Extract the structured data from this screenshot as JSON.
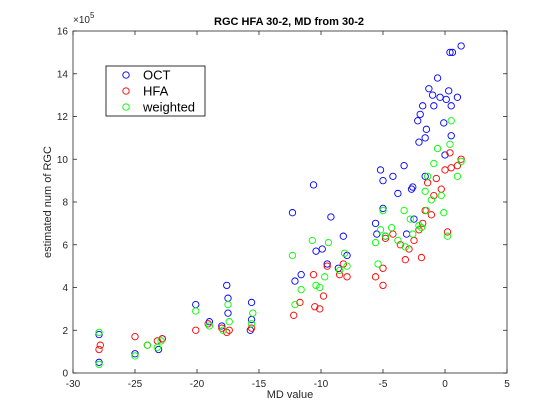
{
  "chart_data": {
    "type": "scatter",
    "title": "RGC HFA 30-2, MD from 30-2",
    "xlabel": "MD value",
    "ylabel": "estimated num of RGC",
    "y_exponent_label": "×10",
    "y_exponent_power": "5",
    "xlim": [
      -30,
      5
    ],
    "ylim": [
      0,
      16
    ],
    "x_ticks": [
      -30,
      -25,
      -20,
      -15,
      -10,
      -5,
      0,
      5
    ],
    "y_ticks": [
      0,
      2,
      4,
      6,
      8,
      10,
      12,
      14,
      16
    ],
    "x_tick_labels": [
      "-30",
      "-25",
      "-20",
      "-15",
      "-10",
      "-5",
      "0",
      "5"
    ],
    "y_tick_labels": [
      "0",
      "2",
      "4",
      "6",
      "8",
      "10",
      "12",
      "14",
      "16"
    ],
    "grid": false,
    "legend_position": "top-left",
    "marker": "open-circle",
    "series": [
      {
        "name": "OCT",
        "color": "#0000ff",
        "points": [
          [
            -27.9,
            0.5
          ],
          [
            -27.9,
            1.8
          ],
          [
            -25.0,
            0.9
          ],
          [
            -23.1,
            1.1
          ],
          [
            -22.8,
            1.6
          ],
          [
            -20.1,
            3.2
          ],
          [
            -19.0,
            2.4
          ],
          [
            -18.0,
            2.2
          ],
          [
            -17.6,
            4.1
          ],
          [
            -17.5,
            3.5
          ],
          [
            -17.5,
            2.8
          ],
          [
            -15.7,
            2.0
          ],
          [
            -15.6,
            2.5
          ],
          [
            -15.6,
            3.3
          ],
          [
            -12.3,
            7.5
          ],
          [
            -12.1,
            4.3
          ],
          [
            -11.6,
            4.6
          ],
          [
            -10.6,
            8.8
          ],
          [
            -10.4,
            5.7
          ],
          [
            -9.9,
            5.8
          ],
          [
            -9.5,
            5.1
          ],
          [
            -9.2,
            7.3
          ],
          [
            -8.6,
            4.9
          ],
          [
            -8.2,
            6.4
          ],
          [
            -7.9,
            5.5
          ],
          [
            -5.6,
            7.0
          ],
          [
            -5.5,
            6.5
          ],
          [
            -5.2,
            9.5
          ],
          [
            -5.0,
            9.0
          ],
          [
            -5.0,
            7.7
          ],
          [
            -4.8,
            6.4
          ],
          [
            -4.2,
            9.2
          ],
          [
            -3.8,
            8.4
          ],
          [
            -3.3,
            9.7
          ],
          [
            -3.1,
            6.5
          ],
          [
            -2.7,
            8.6
          ],
          [
            -2.6,
            8.7
          ],
          [
            -2.5,
            7.2
          ],
          [
            -2.2,
            11.8
          ],
          [
            -2.1,
            10.8
          ],
          [
            -2.0,
            12.1
          ],
          [
            -1.8,
            12.5
          ],
          [
            -1.6,
            11.0
          ],
          [
            -1.6,
            9.2
          ],
          [
            -1.5,
            11.4
          ],
          [
            -1.3,
            13.3
          ],
          [
            -1.0,
            13.0
          ],
          [
            -0.9,
            12.5
          ],
          [
            -0.6,
            13.8
          ],
          [
            -0.4,
            12.9
          ],
          [
            -0.1,
            11.7
          ],
          [
            0.0,
            10.2
          ],
          [
            0.1,
            12.8
          ],
          [
            0.3,
            13.2
          ],
          [
            0.4,
            15.0
          ],
          [
            0.5,
            12.5
          ],
          [
            0.5,
            11.1
          ],
          [
            0.6,
            15.0
          ],
          [
            1.0,
            12.9
          ],
          [
            1.3,
            15.3
          ]
        ]
      },
      {
        "name": "HFA",
        "color": "#ff0000",
        "points": [
          [
            -27.9,
            1.1
          ],
          [
            -27.8,
            1.3
          ],
          [
            -25.0,
            1.7
          ],
          [
            -24.0,
            1.3
          ],
          [
            -23.2,
            1.5
          ],
          [
            -22.8,
            1.6
          ],
          [
            -20.1,
            2.0
          ],
          [
            -19.1,
            2.3
          ],
          [
            -18.0,
            2.1
          ],
          [
            -17.6,
            1.9
          ],
          [
            -17.4,
            2.0
          ],
          [
            -15.6,
            2.1
          ],
          [
            -12.2,
            2.7
          ],
          [
            -11.7,
            3.3
          ],
          [
            -10.6,
            4.6
          ],
          [
            -10.5,
            3.1
          ],
          [
            -10.1,
            3.0
          ],
          [
            -9.8,
            3.6
          ],
          [
            -9.5,
            5.0
          ],
          [
            -8.5,
            4.6
          ],
          [
            -8.2,
            5.1
          ],
          [
            -7.9,
            4.5
          ],
          [
            -5.6,
            4.5
          ],
          [
            -5.0,
            4.1
          ],
          [
            -5.0,
            4.9
          ],
          [
            -4.8,
            6.3
          ],
          [
            -4.2,
            6.5
          ],
          [
            -3.6,
            6.0
          ],
          [
            -3.2,
            5.3
          ],
          [
            -2.9,
            5.8
          ],
          [
            -2.5,
            6.2
          ],
          [
            -2.1,
            6.7
          ],
          [
            -1.9,
            5.4
          ],
          [
            -1.8,
            7.0
          ],
          [
            -1.6,
            7.6
          ],
          [
            -1.4,
            8.9
          ],
          [
            -1.1,
            7.4
          ],
          [
            -0.9,
            8.3
          ],
          [
            -0.7,
            9.1
          ],
          [
            -0.3,
            8.6
          ],
          [
            0.0,
            9.5
          ],
          [
            0.2,
            6.6
          ],
          [
            0.4,
            10.3
          ],
          [
            0.5,
            9.6
          ],
          [
            1.0,
            9.7
          ],
          [
            1.3,
            10.0
          ]
        ]
      },
      {
        "name": "weighted",
        "color": "#00ff00",
        "points": [
          [
            -27.9,
            0.4
          ],
          [
            -27.9,
            1.9
          ],
          [
            -25.0,
            0.8
          ],
          [
            -24.0,
            1.3
          ],
          [
            -23.2,
            1.2
          ],
          [
            -22.9,
            1.5
          ],
          [
            -20.1,
            2.9
          ],
          [
            -19.0,
            2.2
          ],
          [
            -17.9,
            2.0
          ],
          [
            -17.5,
            3.2
          ],
          [
            -17.4,
            2.4
          ],
          [
            -15.6,
            2.3
          ],
          [
            -15.5,
            2.8
          ],
          [
            -12.3,
            5.5
          ],
          [
            -12.1,
            3.2
          ],
          [
            -11.6,
            3.9
          ],
          [
            -10.7,
            6.2
          ],
          [
            -10.4,
            4.1
          ],
          [
            -10.1,
            4.0
          ],
          [
            -9.7,
            4.5
          ],
          [
            -9.4,
            6.1
          ],
          [
            -8.5,
            4.8
          ],
          [
            -8.1,
            5.6
          ],
          [
            -7.9,
            5.0
          ],
          [
            -5.6,
            6.1
          ],
          [
            -5.4,
            5.1
          ],
          [
            -5.2,
            6.7
          ],
          [
            -5.0,
            7.6
          ],
          [
            -4.8,
            6.4
          ],
          [
            -4.3,
            6.8
          ],
          [
            -3.8,
            6.2
          ],
          [
            -3.3,
            7.6
          ],
          [
            -3.2,
            5.9
          ],
          [
            -2.8,
            7.2
          ],
          [
            -2.6,
            6.5
          ],
          [
            -2.1,
            6.9
          ],
          [
            -1.9,
            6.8
          ],
          [
            -1.6,
            8.5
          ],
          [
            -1.5,
            7.6
          ],
          [
            -1.4,
            9.2
          ],
          [
            -1.1,
            8.1
          ],
          [
            -0.9,
            9.8
          ],
          [
            -0.6,
            10.5
          ],
          [
            -0.3,
            8.3
          ],
          [
            -0.1,
            7.5
          ],
          [
            0.2,
            6.4
          ],
          [
            0.4,
            10.7
          ],
          [
            0.5,
            11.8
          ],
          [
            1.0,
            9.2
          ],
          [
            1.3,
            9.9
          ]
        ]
      }
    ]
  }
}
